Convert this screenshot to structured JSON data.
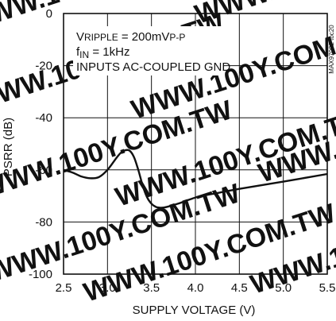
{
  "chart_data": {
    "type": "line",
    "xlabel": "SUPPLY VOLTAGE (V)",
    "ylabel": "PSRR (dB)",
    "xlim": [
      2.5,
      5.5
    ],
    "ylim": [
      -100,
      0
    ],
    "x_ticks": [
      "2.5",
      "3.0",
      "3.5",
      "4.0",
      "4.5",
      "5.0",
      "5.5"
    ],
    "y_ticks": [
      "0",
      "-20",
      "-40",
      "-60",
      "-80",
      "-100"
    ],
    "grid": true,
    "annotations": {
      "ripple_prefix": "V",
      "ripple_sub": "RIPPLE",
      "ripple_value": " = 200mV",
      "ripple_unit_sub": "P-P",
      "fin_prefix": "f",
      "fin_sub": "IN",
      "fin_value": " = 1kHz",
      "inputs": "INPUTS AC-COUPLED GND"
    },
    "part_number": "MAX97002 toc20",
    "watermark": "WWW.100Y.COM.TW",
    "series": [
      {
        "x": [
          2.5,
          2.6,
          2.7,
          2.8,
          2.9,
          3.0,
          3.1,
          3.15,
          3.2,
          3.25,
          3.3,
          3.35,
          3.4,
          3.45,
          3.5,
          3.55,
          3.6,
          3.65,
          3.7,
          3.8,
          3.9,
          4.0,
          4.1,
          4.2,
          4.5,
          5.0,
          5.5
        ],
        "y": [
          -60,
          -61,
          -62.5,
          -63.2,
          -62.8,
          -60,
          -55.5,
          -53.5,
          -52.5,
          -52.6,
          -55,
          -60,
          -66,
          -70.5,
          -73,
          -74.2,
          -74.5,
          -74.4,
          -74,
          -73,
          -71.8,
          -70.6,
          -69.8,
          -69.2,
          -67.3,
          -64.5,
          -61.6
        ],
        "color": "#111111"
      }
    ]
  }
}
